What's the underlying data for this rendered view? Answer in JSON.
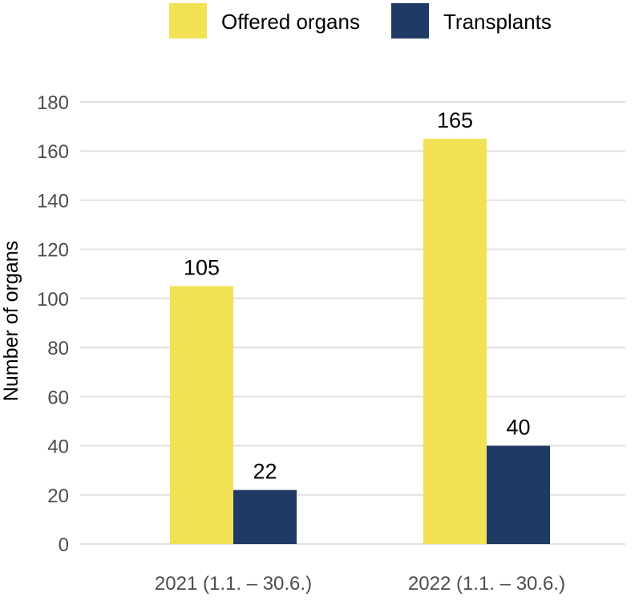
{
  "chart_data": {
    "type": "bar",
    "title": "",
    "xlabel": "",
    "ylabel": "Number of organs",
    "ylim": [
      0,
      180
    ],
    "yticks": [
      0,
      20,
      40,
      60,
      80,
      100,
      120,
      140,
      160,
      180
    ],
    "grid": true,
    "legend_position": "top",
    "categories": [
      "2021 (1.1. – 30.6.)",
      "2022 (1.1. – 30.6.)"
    ],
    "series": [
      {
        "name": "Offered organs",
        "color": "#f2e155",
        "values": [
          105,
          165
        ]
      },
      {
        "name": "Transplants",
        "color": "#1f3a64",
        "values": [
          22,
          40
        ]
      }
    ]
  }
}
